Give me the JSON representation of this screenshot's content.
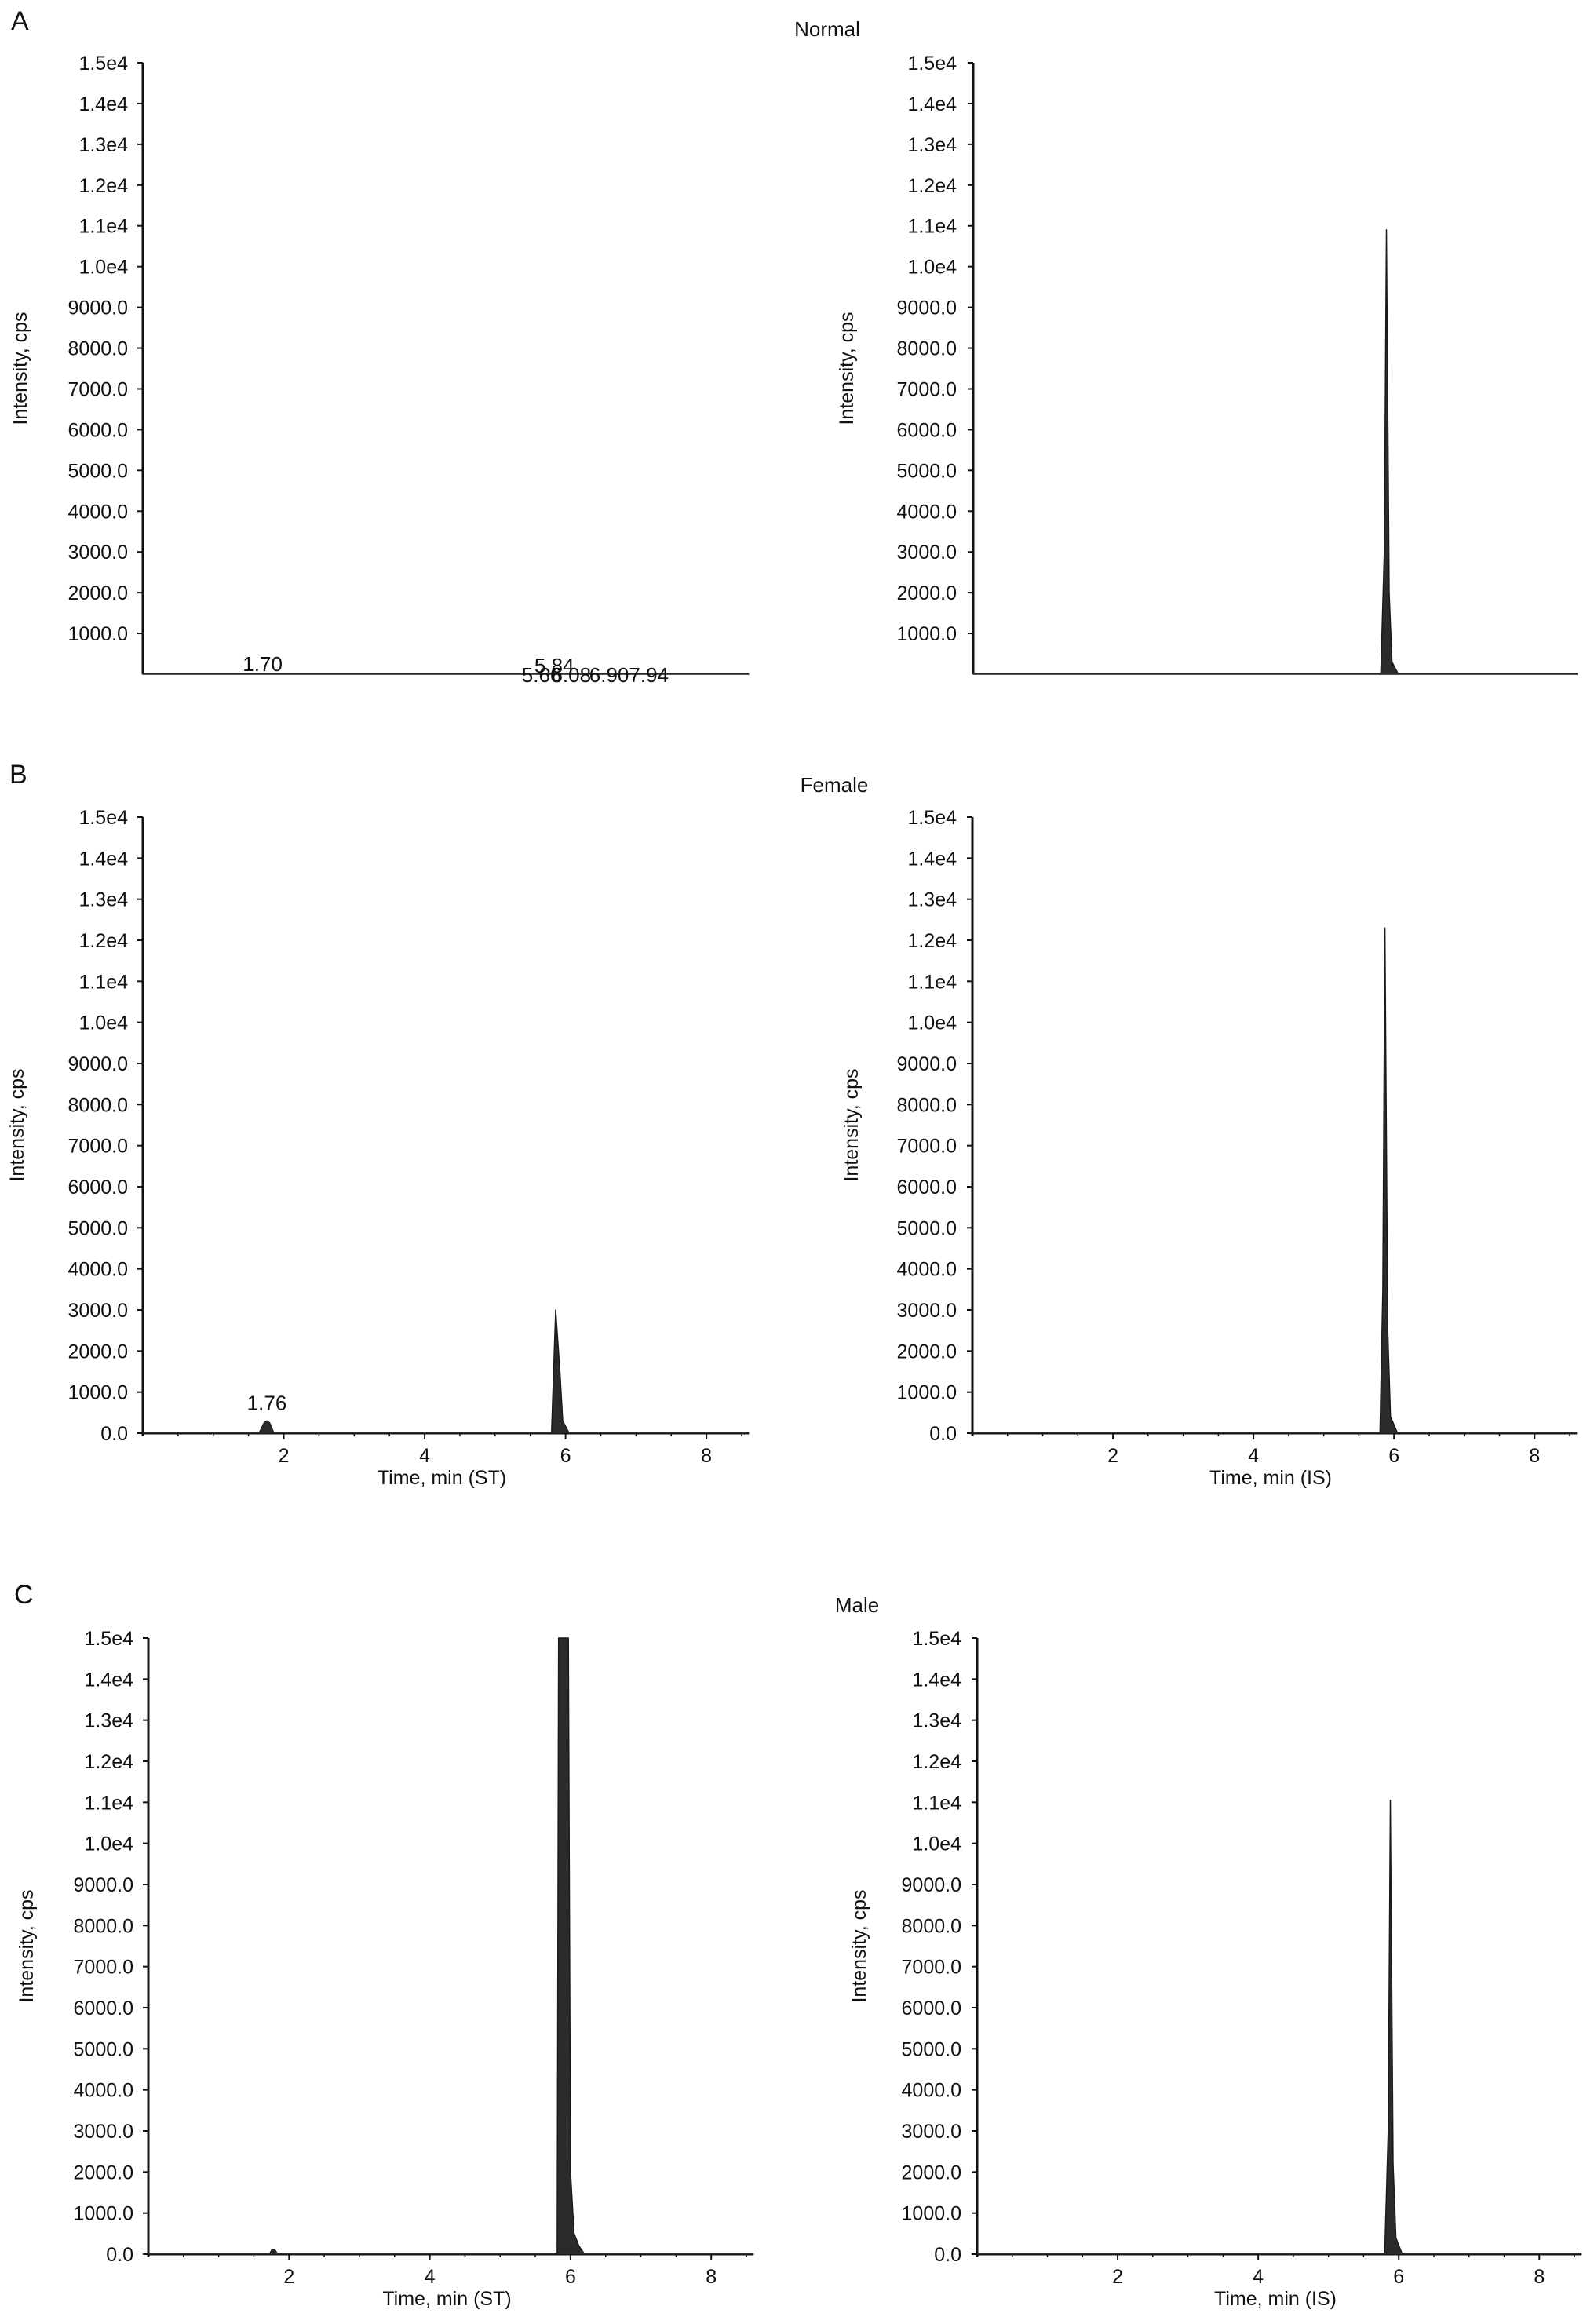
{
  "panels": [
    {
      "letter": "A",
      "title": "Normal"
    },
    {
      "letter": "B",
      "title": "Female"
    },
    {
      "letter": "C",
      "title": "Male"
    }
  ],
  "chart_data": [
    {
      "id": "A-ST",
      "panel": "A",
      "type": "area",
      "ylabel": "Intensity, cps",
      "xlabel": "",
      "ylim": [
        0,
        15000
      ],
      "xlim": [
        0,
        8.6
      ],
      "yticks": [
        "1000.0",
        "2000.0",
        "3000.0",
        "4000.0",
        "5000.0",
        "6000.0",
        "7000.0",
        "8000.0",
        "9000.0",
        "1.0e4",
        "1.1e4",
        "1.2e4",
        "1.3e4",
        "1.4e4",
        "1.5e4"
      ],
      "xticks": [],
      "series": [
        {
          "values": [
            [
              0,
              0
            ],
            [
              8.6,
              0
            ]
          ]
        }
      ],
      "annotations": [
        {
          "x": 1.7,
          "text": "1.70"
        },
        {
          "x": 5.66,
          "text": "5.66"
        },
        {
          "x": 5.84,
          "text": "5.84"
        },
        {
          "x": 6.08,
          "text": "6.08"
        },
        {
          "x": 6.9,
          "text": "6.907.94"
        }
      ]
    },
    {
      "id": "A-IS",
      "panel": "A",
      "type": "area",
      "ylabel": "Intensity, cps",
      "xlabel": "",
      "ylim": [
        0,
        15000
      ],
      "xlim": [
        0,
        8.6
      ],
      "yticks": [
        "1000.0",
        "2000.0",
        "3000.0",
        "4000.0",
        "5000.0",
        "6000.0",
        "7000.0",
        "8000.0",
        "9000.0",
        "1.0e4",
        "1.1e4",
        "1.2e4",
        "1.3e4",
        "1.4e4",
        "1.5e4"
      ],
      "xticks": [],
      "series": [
        {
          "values": [
            [
              0,
              0
            ],
            [
              5.7,
              0
            ],
            [
              5.8,
              0
            ],
            [
              5.85,
              3000
            ],
            [
              5.88,
              10900
            ],
            [
              5.92,
              2000
            ],
            [
              5.96,
              300
            ],
            [
              6.05,
              0
            ],
            [
              8.6,
              0
            ]
          ]
        }
      ],
      "annotations": []
    },
    {
      "id": "B-ST",
      "panel": "B",
      "type": "area",
      "ylabel": "Intensity, cps",
      "xlabel": "Time, min (ST)",
      "ylim": [
        0,
        15000
      ],
      "xlim": [
        0,
        8.6
      ],
      "yticks": [
        "0.0",
        "1000.0",
        "2000.0",
        "3000.0",
        "4000.0",
        "5000.0",
        "6000.0",
        "7000.0",
        "8000.0",
        "9000.0",
        "1.0e4",
        "1.1e4",
        "1.2e4",
        "1.3e4",
        "1.4e4",
        "1.5e4"
      ],
      "xticks": [
        "2",
        "4",
        "6",
        "8"
      ],
      "series": [
        {
          "values": [
            [
              0,
              0
            ],
            [
              1.65,
              0
            ],
            [
              1.72,
              250
            ],
            [
              1.76,
              300
            ],
            [
              1.8,
              250
            ],
            [
              1.86,
              0
            ],
            [
              5.7,
              0
            ],
            [
              5.8,
              0
            ],
            [
              5.86,
              3000
            ],
            [
              5.92,
              1500
            ],
            [
              5.96,
              300
            ],
            [
              6.05,
              0
            ],
            [
              8.6,
              0
            ]
          ]
        }
      ],
      "annotations": [
        {
          "x": 1.76,
          "text": "1.76"
        }
      ]
    },
    {
      "id": "B-IS",
      "panel": "B",
      "type": "area",
      "ylabel": "Intensity, cps",
      "xlabel": "Time, min (IS)",
      "ylim": [
        0,
        15000
      ],
      "xlim": [
        0,
        8.6
      ],
      "yticks": [
        "0.0",
        "1000.0",
        "2000.0",
        "3000.0",
        "4000.0",
        "5000.0",
        "6000.0",
        "7000.0",
        "8000.0",
        "9000.0",
        "1.0e4",
        "1.1e4",
        "1.2e4",
        "1.3e4",
        "1.4e4",
        "1.5e4"
      ],
      "xticks": [
        "2",
        "4",
        "6",
        "8"
      ],
      "series": [
        {
          "values": [
            [
              0,
              0
            ],
            [
              5.7,
              0
            ],
            [
              5.8,
              0
            ],
            [
              5.84,
              3500
            ],
            [
              5.87,
              12300
            ],
            [
              5.91,
              2500
            ],
            [
              5.95,
              400
            ],
            [
              6.05,
              0
            ],
            [
              8.6,
              0
            ]
          ]
        }
      ],
      "annotations": []
    },
    {
      "id": "C-ST",
      "panel": "C",
      "type": "area",
      "ylabel": "Intensity, cps",
      "xlabel": "Time, min (ST)",
      "ylim": [
        0,
        15000
      ],
      "xlim": [
        0,
        8.6
      ],
      "yticks": [
        "0.0",
        "1000.0",
        "2000.0",
        "3000.0",
        "4000.0",
        "5000.0",
        "6000.0",
        "7000.0",
        "8000.0",
        "9000.0",
        "1.0e4",
        "1.1e4",
        "1.2e4",
        "1.3e4",
        "1.4e4",
        "1.5e4"
      ],
      "xticks": [
        "2",
        "4",
        "6",
        "8"
      ],
      "series": [
        {
          "values": [
            [
              0,
              0
            ],
            [
              1.72,
              0
            ],
            [
              1.76,
              120
            ],
            [
              1.8,
              100
            ],
            [
              1.84,
              0
            ],
            [
              5.75,
              0
            ],
            [
              5.81,
              0
            ],
            [
              5.83,
              15000
            ],
            [
              5.97,
              15000
            ],
            [
              6.0,
              2000
            ],
            [
              6.05,
              500
            ],
            [
              6.12,
              200
            ],
            [
              6.2,
              0
            ],
            [
              8.6,
              0
            ]
          ]
        }
      ],
      "annotations": []
    },
    {
      "id": "C-IS",
      "panel": "C",
      "type": "area",
      "ylabel": "Intensity, cps",
      "xlabel": "Time, min (IS)",
      "ylim": [
        0,
        15000
      ],
      "xlim": [
        0,
        8.6
      ],
      "yticks": [
        "0.0",
        "1000.0",
        "2000.0",
        "3000.0",
        "4000.0",
        "5000.0",
        "6000.0",
        "7000.0",
        "8000.0",
        "9000.0",
        "1.0e4",
        "1.1e4",
        "1.2e4",
        "1.3e4",
        "1.4e4",
        "1.5e4"
      ],
      "xticks": [
        "2",
        "4",
        "6",
        "8"
      ],
      "series": [
        {
          "values": [
            [
              0,
              0
            ],
            [
              5.7,
              0
            ],
            [
              5.8,
              0
            ],
            [
              5.85,
              3000
            ],
            [
              5.88,
              11050
            ],
            [
              5.92,
              2200
            ],
            [
              5.96,
              400
            ],
            [
              6.05,
              0
            ],
            [
              8.6,
              0
            ]
          ]
        }
      ],
      "annotations": []
    }
  ]
}
